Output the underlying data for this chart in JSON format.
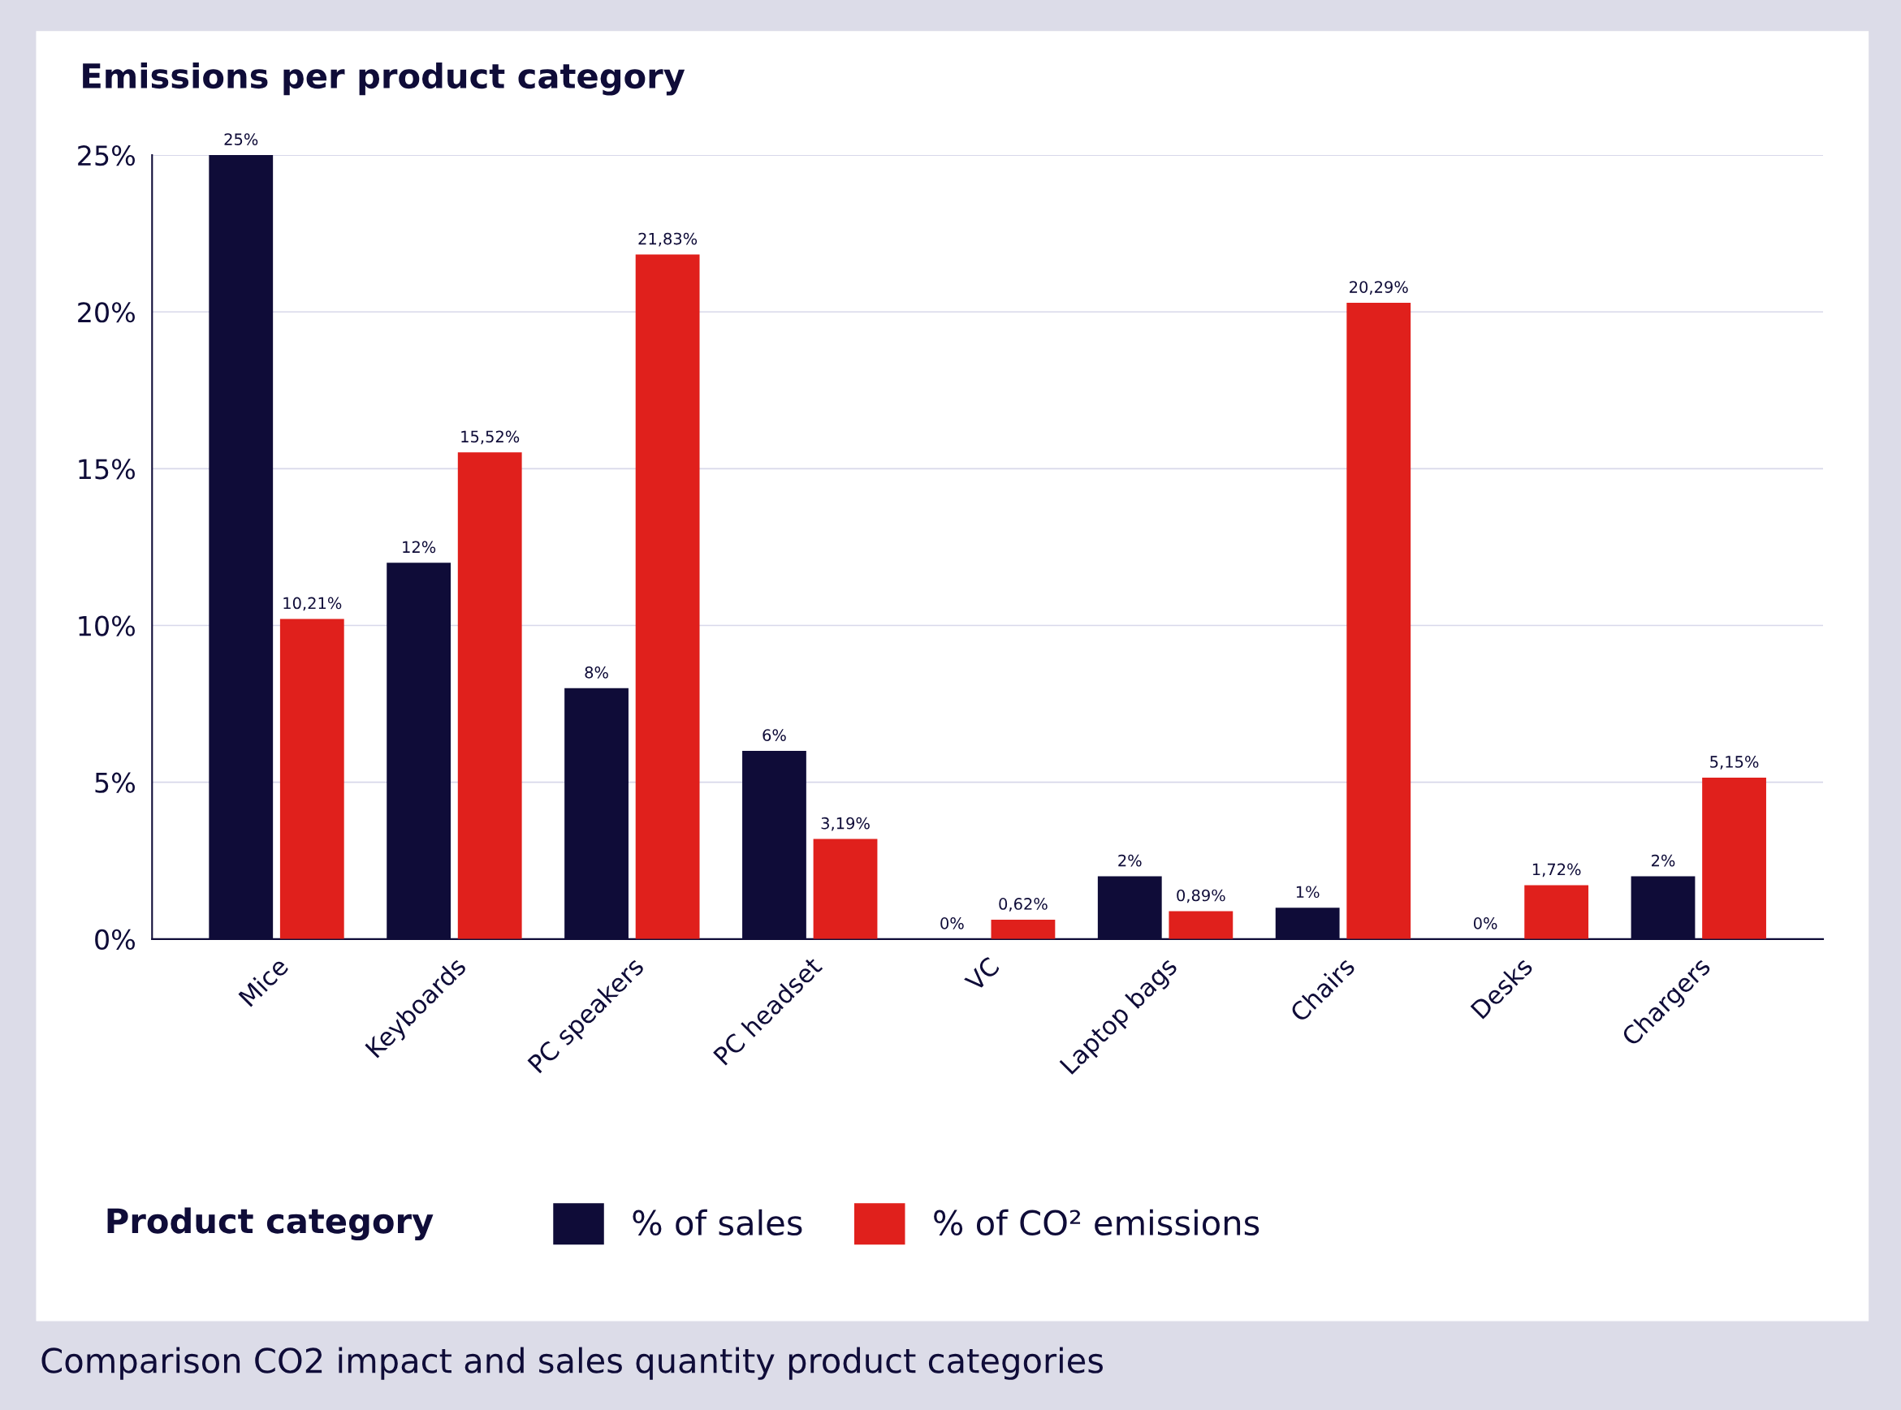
{
  "chart_data": {
    "type": "bar",
    "title": "Emissions per product category",
    "categories": [
      "Mice",
      "Keyboards",
      "PC speakers",
      "PC headset",
      "VC",
      "Laptop bags",
      "Chairs",
      "Desks",
      "Chargers"
    ],
    "series": [
      {
        "name": "% of sales",
        "color": "#0f0c38",
        "values": [
          25,
          12,
          8,
          6,
          0,
          2,
          1,
          0,
          2
        ],
        "value_labels": [
          "25%",
          "12%",
          "8%",
          "6%",
          "0%",
          "2%",
          "1%",
          "0%",
          "2%"
        ]
      },
      {
        "name": "% of CO² emissions",
        "color": "#e0201c",
        "values": [
          10.21,
          15.52,
          21.83,
          3.19,
          0.62,
          0.89,
          20.29,
          1.72,
          5.15
        ],
        "value_labels": [
          "10,21%",
          "15,52%",
          "21,83%",
          "3,19%",
          "0,62%",
          "0,89%",
          "20,29%",
          "1,72%",
          "5,15%"
        ]
      }
    ],
    "ylim": [
      0,
      25
    ],
    "yticks": [
      {
        "value": 0,
        "label": "0%"
      },
      {
        "value": 5,
        "label": "5%"
      },
      {
        "value": 10,
        "label": "10%"
      },
      {
        "value": 15,
        "label": "15%"
      },
      {
        "value": 20,
        "label": "20%"
      },
      {
        "value": 25,
        "label": "25%"
      }
    ],
    "grid": "y",
    "legend": "bottom",
    "legend_title": "Product category",
    "annotations": [
      "Comparison CO2 impact and sales quantity product categories"
    ]
  }
}
